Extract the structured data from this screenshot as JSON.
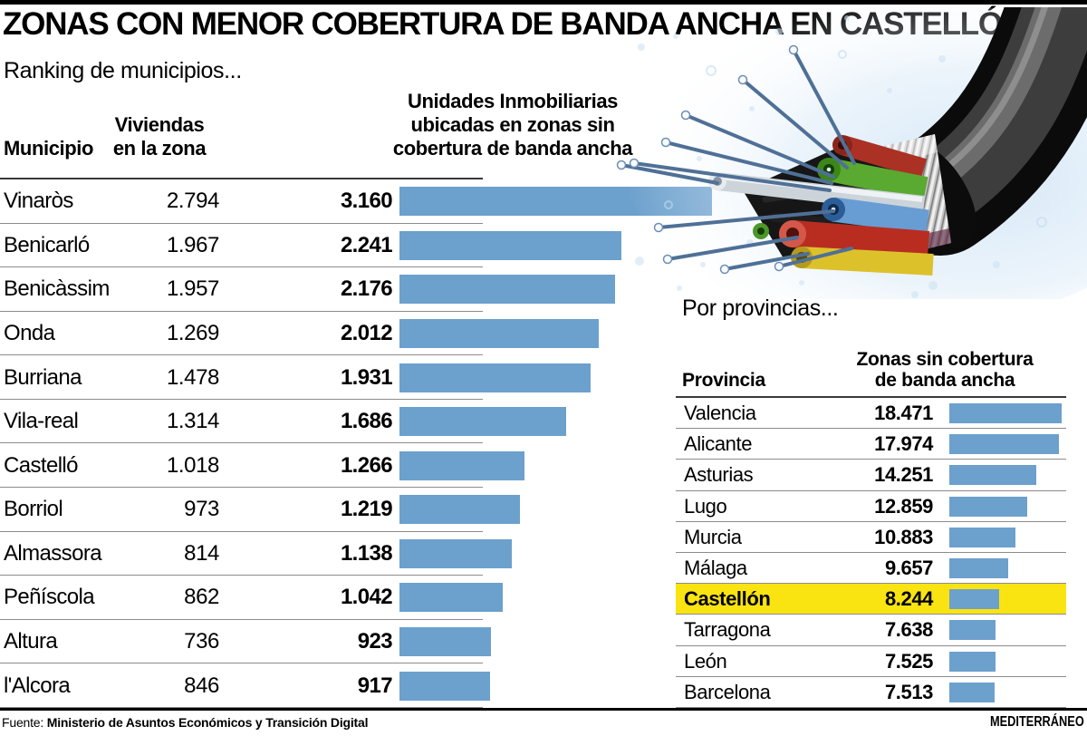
{
  "page": {
    "title": "ZONAS CON MENOR COBERTURA DE BANDA ANCHA EN CASTELLÓN",
    "illustration": "fiber-optic-cable-cross-section",
    "footer": {
      "source_label": "Fuente:",
      "source_text": "Ministerio de Asuntos Económicos y Transición Digital",
      "credit": "MEDITERRÁNEO"
    }
  },
  "municipios": {
    "heading": "Ranking de municipios...",
    "col_municipio": "Municipio",
    "col_viviendas_1": "Viviendas",
    "col_viviendas_2": "en la zona",
    "col_unidades_1": "Unidades Inmobiliarias",
    "col_unidades_2": "ubicadas en zonas sin",
    "col_unidades_3": "cobertura de banda ancha",
    "rows": [
      {
        "name": "Vinaròs",
        "viviendas": "2.794",
        "unidades": "3.160"
      },
      {
        "name": "Benicarló",
        "viviendas": "1.967",
        "unidades": "2.241"
      },
      {
        "name": "Benicàssim",
        "viviendas": "1.957",
        "unidades": "2.176"
      },
      {
        "name": "Onda",
        "viviendas": "1.269",
        "unidades": "2.012"
      },
      {
        "name": "Burriana",
        "viviendas": "1.478",
        "unidades": "1.931"
      },
      {
        "name": "Vila-real",
        "viviendas": "1.314",
        "unidades": "1.686"
      },
      {
        "name": "Castelló",
        "viviendas": "1.018",
        "unidades": "1.266"
      },
      {
        "name": "Borriol",
        "viviendas": "973",
        "unidades": "1.219"
      },
      {
        "name": "Almassora",
        "viviendas": "814",
        "unidades": "1.138"
      },
      {
        "name": "Peñíscola",
        "viviendas": "862",
        "unidades": "1.042"
      },
      {
        "name": "Altura",
        "viviendas": "736",
        "unidades": "923"
      },
      {
        "name": "l'Alcora",
        "viviendas": "846",
        "unidades": "917"
      }
    ]
  },
  "provincias": {
    "heading": "Por provincias...",
    "col_provincia": "Provincia",
    "col_zonas_1": "Zonas sin cobertura",
    "col_zonas_2": "de banda ancha",
    "rows": [
      {
        "name": "Valencia",
        "zonas": "18.471"
      },
      {
        "name": "Alicante",
        "zonas": "17.974"
      },
      {
        "name": "Asturias",
        "zonas": "14.251"
      },
      {
        "name": "Lugo",
        "zonas": "12.859"
      },
      {
        "name": "Murcia",
        "zonas": "10.883"
      },
      {
        "name": "Málaga",
        "zonas": "9.657"
      },
      {
        "name": "Castellón",
        "zonas": "8.244"
      },
      {
        "name": "Tarragona",
        "zonas": "7.638"
      },
      {
        "name": "León",
        "zonas": "7.525"
      },
      {
        "name": "Barcelona",
        "zonas": "7.513"
      }
    ]
  },
  "colors": {
    "bar_blue": "#6ca0cd",
    "highlight_yellow": "#f9e411",
    "separator_gray": "#8c8c8c"
  },
  "chart_data": [
    {
      "type": "bar",
      "orientation": "horizontal",
      "section_title": "Ranking de municipios...",
      "categories": [
        "Vinaròs",
        "Benicarló",
        "Benicàssim",
        "Onda",
        "Burriana",
        "Vila-real",
        "Castelló",
        "Borriol",
        "Almassora",
        "Peñíscola",
        "Altura",
        "l'Alcora"
      ],
      "series": [
        {
          "name": "Viviendas en la zona",
          "rendered_as": "text-column",
          "values": [
            2794,
            1967,
            1957,
            1269,
            1478,
            1314,
            1018,
            973,
            814,
            862,
            736,
            846
          ]
        },
        {
          "name": "Unidades Inmobiliarias ubicadas en zonas sin cobertura de banda ancha",
          "rendered_as": "bars-with-labels",
          "values": [
            3160,
            2241,
            2176,
            2012,
            1931,
            1686,
            1266,
            1219,
            1138,
            1042,
            923,
            917
          ]
        }
      ],
      "xlim": [
        0,
        3200
      ],
      "bar_color": "#6ca0cd",
      "grid": false,
      "value_labels": true
    },
    {
      "type": "bar",
      "orientation": "horizontal",
      "section_title": "Por provincias...",
      "value_header": "Zonas sin cobertura de banda ancha",
      "categories": [
        "Valencia",
        "Alicante",
        "Asturias",
        "Lugo",
        "Murcia",
        "Málaga",
        "Castellón",
        "Tarragona",
        "León",
        "Barcelona"
      ],
      "values": [
        18471,
        17974,
        14251,
        12859,
        10883,
        9657,
        8244,
        7638,
        7525,
        7513
      ],
      "xlim": [
        0,
        18500
      ],
      "bar_color": "#6ca0cd",
      "highlight": {
        "category": "Castellón",
        "color": "#f9e411"
      },
      "grid": false,
      "value_labels": true
    }
  ]
}
